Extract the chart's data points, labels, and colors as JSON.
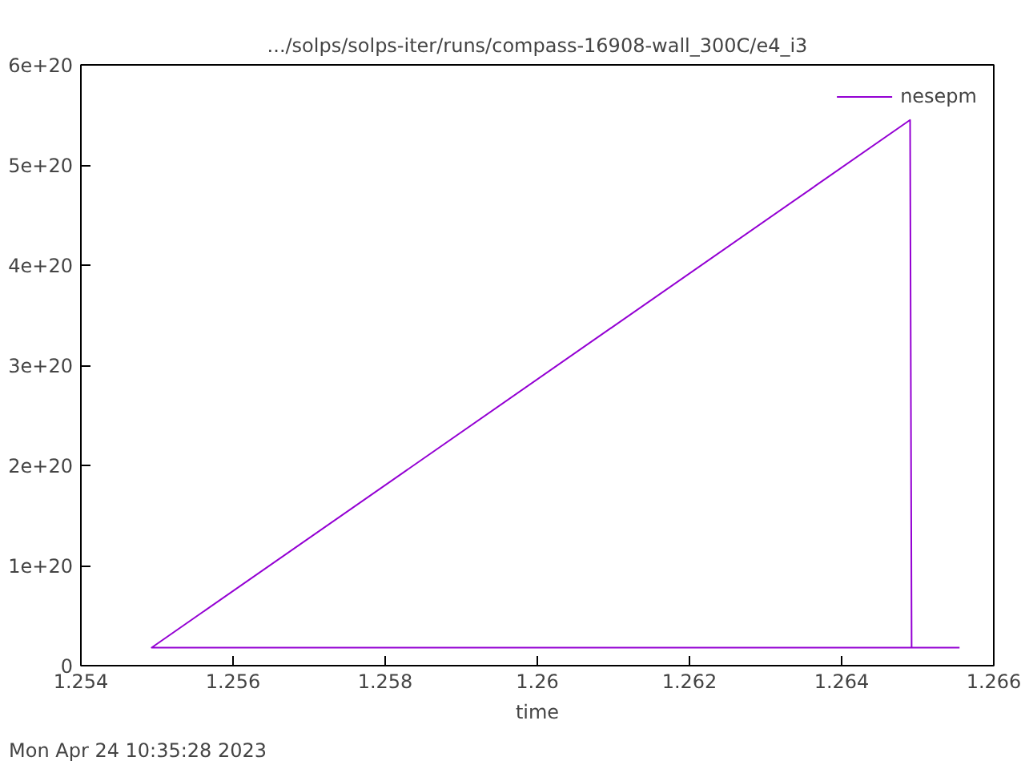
{
  "chart_data": {
    "type": "line",
    "title": ".../solps/solps-iter/runs/compass-16908-wall_300C/e4_i3",
    "xlabel": "time",
    "x": [
      1.25493,
      1.2649,
      1.26492,
      1.25493,
      1.26555
    ],
    "series": [
      {
        "name": "nesepm",
        "color": "#9400d3",
        "values": [
          1.8e+19,
          5.45e+20,
          1.8e+19,
          1.8e+19,
          1.8e+19
        ]
      }
    ],
    "xlim": [
      1.254,
      1.266
    ],
    "xticks": [
      1.254,
      1.256,
      1.258,
      1.26,
      1.262,
      1.264,
      1.266
    ],
    "ylim": [
      0,
      6e+20
    ],
    "yticks": [
      0,
      {
        "value": 1e+20,
        "label": "1e+20"
      },
      {
        "value": 2e+20,
        "label": "2e+20"
      },
      {
        "value": 3e+20,
        "label": "3e+20"
      },
      {
        "value": 4e+20,
        "label": "4e+20"
      },
      {
        "value": 5e+20,
        "label": "5e+20"
      },
      {
        "value": 6e+20,
        "label": "6e+20"
      }
    ],
    "grid": false,
    "legend": "top right",
    "marker": "none",
    "line_style": "solid",
    "annotations": [
      "Mon Apr 24 10:35:28 2023"
    ]
  }
}
